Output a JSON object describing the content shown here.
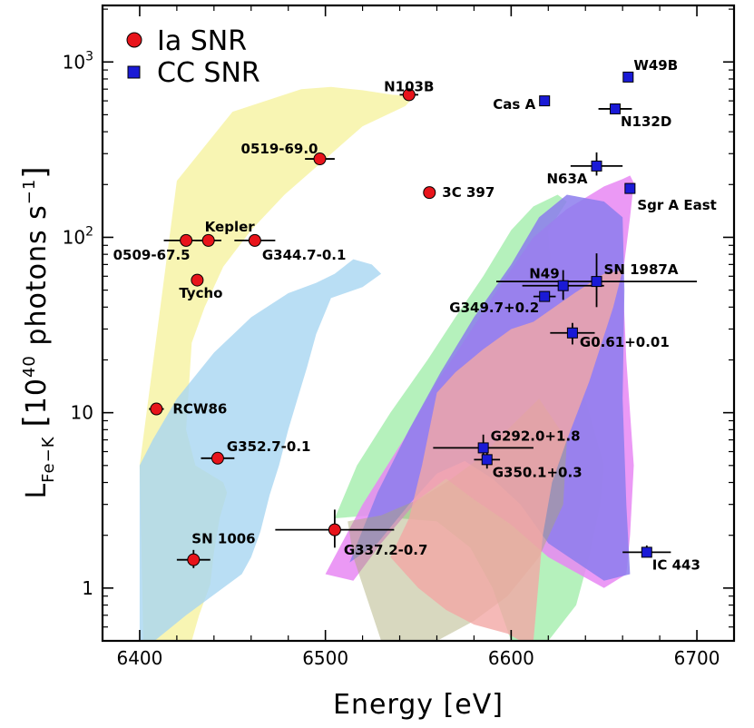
{
  "chart_data": {
    "type": "scatter",
    "xlabel": "Energy [eV]",
    "ylabel_main": "L",
    "ylabel_sub": "Fe−K",
    "ylabel_bracket_open": "[",
    "ylabel_unit_base": "10",
    "ylabel_unit_exp": "40",
    "ylabel_unit_rest": " photons s",
    "ylabel_unit_exp2": "−1",
    "ylabel_bracket_close": "]",
    "xlim": [
      6380,
      6720
    ],
    "ylim": [
      0.5,
      2100
    ],
    "yscale": "log",
    "xticks": [
      {
        "value": 6400,
        "label": "6400"
      },
      {
        "value": 6500,
        "label": "6500"
      },
      {
        "value": 6600,
        "label": "6600"
      },
      {
        "value": 6700,
        "label": "6700"
      }
    ],
    "yticks": [
      {
        "value": 1,
        "label": "1",
        "exp": ""
      },
      {
        "value": 10,
        "label": "10",
        "exp": ""
      },
      {
        "value": 100,
        "label": "10",
        "exp": "2"
      },
      {
        "value": 1000,
        "label": "10",
        "exp": "3"
      }
    ],
    "legend": {
      "position": "top-left",
      "entries": [
        {
          "name": "Ia SNR",
          "marker": "circle",
          "color": "#e8141b"
        },
        {
          "name": "CC SNR",
          "marker": "square",
          "color": "#1a1ad6"
        }
      ]
    },
    "regions": [
      {
        "name": "yellow-band",
        "color": "#f6f299",
        "opacity": 0.75,
        "points": [
          [
            6420,
            210
          ],
          [
            6450,
            520
          ],
          [
            6487,
            700
          ],
          [
            6503,
            720
          ],
          [
            6520,
            690
          ],
          [
            6536,
            650
          ],
          [
            6548,
            640
          ],
          [
            6543,
            560
          ],
          [
            6520,
            430
          ],
          [
            6500,
            280
          ],
          [
            6478,
            175
          ],
          [
            6460,
            110
          ],
          [
            6445,
            68
          ],
          [
            6435,
            40
          ],
          [
            6428,
            25
          ],
          [
            6425,
            8
          ],
          [
            6430,
            5
          ],
          [
            6445,
            4
          ],
          [
            6447,
            3.5
          ],
          [
            6443,
            2.5
          ],
          [
            6440,
            1.6
          ],
          [
            6438,
            1.05
          ],
          [
            6432,
            0.7
          ],
          [
            6428,
            0.5
          ],
          [
            6402,
            0.5
          ],
          [
            6400,
            5
          ]
        ]
      },
      {
        "name": "blue-band",
        "color": "#a7d6f1",
        "opacity": 0.8,
        "points": [
          [
            6400,
            5
          ],
          [
            6407,
            7
          ],
          [
            6420,
            12
          ],
          [
            6440,
            22
          ],
          [
            6460,
            35
          ],
          [
            6480,
            48
          ],
          [
            6495,
            55
          ],
          [
            6505,
            62
          ],
          [
            6515,
            75
          ],
          [
            6525,
            70
          ],
          [
            6530,
            62
          ],
          [
            6520,
            52
          ],
          [
            6503,
            45
          ],
          [
            6495,
            28
          ],
          [
            6490,
            18
          ],
          [
            6485,
            12
          ],
          [
            6480,
            8
          ],
          [
            6475,
            5
          ],
          [
            6470,
            3.4
          ],
          [
            6465,
            2.1
          ],
          [
            6460,
            1.5
          ],
          [
            6455,
            1.2
          ],
          [
            6442,
            0.95
          ],
          [
            6425,
            0.7
          ],
          [
            6408,
            0.5
          ],
          [
            6400,
            0.5
          ]
        ]
      },
      {
        "name": "green-band",
        "color": "#a8eeb0",
        "opacity": 0.85,
        "points": [
          [
            6505,
            2.5
          ],
          [
            6517,
            5
          ],
          [
            6535,
            10
          ],
          [
            6555,
            20
          ],
          [
            6570,
            35
          ],
          [
            6585,
            60
          ],
          [
            6600,
            110
          ],
          [
            6612,
            150
          ],
          [
            6625,
            175
          ],
          [
            6630,
            160
          ],
          [
            6620,
            110
          ],
          [
            6623,
            40
          ],
          [
            6640,
            12
          ],
          [
            6650,
            5
          ],
          [
            6648,
            3
          ],
          [
            6642,
            1.5
          ],
          [
            6635,
            0.8
          ],
          [
            6620,
            0.5
          ],
          [
            6600,
            0.5
          ],
          [
            6590,
            1.0
          ],
          [
            6578,
            1.7
          ],
          [
            6560,
            2.4
          ],
          [
            6540,
            2.5
          ],
          [
            6525,
            2.6
          ]
        ]
      },
      {
        "name": "magenta-band",
        "color": "#e787f3",
        "opacity": 0.85,
        "points": [
          [
            6500,
            1.2
          ],
          [
            6520,
            3.0
          ],
          [
            6542,
            7
          ],
          [
            6560,
            15
          ],
          [
            6577,
            28
          ],
          [
            6595,
            55
          ],
          [
            6612,
            100
          ],
          [
            6630,
            145
          ],
          [
            6650,
            195
          ],
          [
            6660,
            215
          ],
          [
            6664,
            225
          ],
          [
            6666,
            205
          ],
          [
            6664,
            130
          ],
          [
            6660,
            60
          ],
          [
            6662,
            20
          ],
          [
            6666,
            5
          ],
          [
            6664,
            2
          ],
          [
            6662,
            1.2
          ],
          [
            6650,
            1.0
          ],
          [
            6620,
            1.5
          ],
          [
            6600,
            2.3
          ],
          [
            6580,
            3.2
          ],
          [
            6565,
            4.2
          ],
          [
            6550,
            3.2
          ],
          [
            6530,
            1.8
          ],
          [
            6515,
            1.1
          ]
        ]
      },
      {
        "name": "purple-band",
        "color": "#8c7ded",
        "opacity": 0.85,
        "points": [
          [
            6513,
            1.4
          ],
          [
            6528,
            3.5
          ],
          [
            6545,
            8
          ],
          [
            6562,
            17
          ],
          [
            6580,
            35
          ],
          [
            6600,
            70
          ],
          [
            6615,
            130
          ],
          [
            6630,
            175
          ],
          [
            6650,
            160
          ],
          [
            6660,
            130
          ],
          [
            6661,
            50
          ],
          [
            6660,
            12
          ],
          [
            6662,
            3
          ],
          [
            6664,
            1.2
          ],
          [
            6650,
            1.1
          ],
          [
            6620,
            1.8
          ],
          [
            6605,
            3
          ],
          [
            6590,
            4.2
          ],
          [
            6575,
            5.3
          ],
          [
            6560,
            4.5
          ],
          [
            6545,
            3.0
          ],
          [
            6528,
            1.8
          ]
        ]
      },
      {
        "name": "olive-band",
        "color": "#a9a872",
        "opacity": 0.45,
        "points": [
          [
            6512,
            2.4
          ],
          [
            6530,
            2.6
          ],
          [
            6550,
            3.2
          ],
          [
            6568,
            4.2
          ],
          [
            6583,
            5.5
          ],
          [
            6598,
            8
          ],
          [
            6615,
            12
          ],
          [
            6630,
            7
          ],
          [
            6628,
            3
          ],
          [
            6615,
            1.5
          ],
          [
            6598,
            0.9
          ],
          [
            6580,
            0.65
          ],
          [
            6560,
            0.5
          ],
          [
            6530,
            0.5
          ],
          [
            6515,
            1.5
          ]
        ]
      },
      {
        "name": "red-band",
        "color": "#f2a7a5",
        "opacity": 0.8,
        "points": [
          [
            6535,
            1.5
          ],
          [
            6550,
            1.0
          ],
          [
            6565,
            0.75
          ],
          [
            6580,
            0.62
          ],
          [
            6598,
            0.55
          ],
          [
            6605,
            0.5
          ],
          [
            6612,
            0.5
          ],
          [
            6617,
            2.0
          ],
          [
            6622,
            4.0
          ],
          [
            6630,
            7.0
          ],
          [
            6642,
            15
          ],
          [
            6655,
            40
          ],
          [
            6660,
            65
          ],
          [
            6650,
            62
          ],
          [
            6634,
            48
          ],
          [
            6612,
            33
          ],
          [
            6600,
            30
          ],
          [
            6585,
            23
          ],
          [
            6570,
            17
          ],
          [
            6560,
            13
          ],
          [
            6552,
            5
          ],
          [
            6545,
            2.5
          ]
        ]
      }
    ],
    "series": [
      {
        "name": "Ia SNR",
        "marker": "circle",
        "color": "#e8141b",
        "points": [
          {
            "label": "N103B",
            "x": 6545,
            "y": 650,
            "xerr": 5,
            "yerr_lo": 0,
            "yerr_hi": 0,
            "label_dx": 0,
            "label_dy": -4,
            "anchor": "middle",
            "valign": "bottom"
          },
          {
            "label": "0519-69.0",
            "x": 6497,
            "y": 280,
            "xerr": 8,
            "yerr_lo": 0,
            "yerr_hi": 0,
            "label_dx": -2,
            "label_dy": -6,
            "anchor": "end",
            "valign": "bottom"
          },
          {
            "label": "3C 397",
            "x": 6556,
            "y": 180,
            "xerr": 3,
            "yerr_lo": 0,
            "yerr_hi": 0,
            "label_dx": 14,
            "label_dy": 0,
            "anchor": "start",
            "valign": "middle"
          },
          {
            "label": "Kepler",
            "x": 6437,
            "y": 96,
            "xerr": 7,
            "yerr_lo": 0,
            "yerr_hi": 0,
            "label_dx": -4,
            "label_dy": -10,
            "anchor": "start",
            "valign": "bottom"
          },
          {
            "label": "0509-67.5",
            "x": 6425,
            "y": 96,
            "xerr": 12,
            "yerr_lo": 0,
            "yerr_hi": 0,
            "label_dx": -38,
            "label_dy": 10,
            "anchor": "middle",
            "valign": "top"
          },
          {
            "label": "G344.7-0.1",
            "x": 6462,
            "y": 96,
            "xerr": 11,
            "yerr_lo": 0,
            "yerr_hi": 0,
            "label_dx": 8,
            "label_dy": 10,
            "anchor": "start",
            "valign": "top"
          },
          {
            "label": "Tycho",
            "x": 6431,
            "y": 57,
            "xerr": 2,
            "yerr_lo": 0,
            "yerr_hi": 0,
            "label_dx": 4,
            "label_dy": 8,
            "anchor": "middle",
            "valign": "top"
          },
          {
            "label": "RCW86",
            "x": 6409,
            "y": 10.5,
            "xerr": 4,
            "yerr_lo": 0,
            "yerr_hi": 0,
            "label_dx": 18,
            "label_dy": 0,
            "anchor": "start",
            "valign": "middle"
          },
          {
            "label": "G352.7-0.1",
            "x": 6442,
            "y": 5.5,
            "xerr": 9,
            "yerr_lo": 0,
            "yerr_hi": 0,
            "label_dx": 10,
            "label_dy": -8,
            "anchor": "start",
            "valign": "bottom"
          },
          {
            "label": "SN 1006",
            "x": 6429,
            "y": 1.45,
            "xerr": 9,
            "yerr_lo": 0.15,
            "yerr_hi": 0.2,
            "label_dx": -2,
            "label_dy": -18,
            "anchor": "start",
            "valign": "bottom"
          },
          {
            "label": "G337.2-0.7",
            "x": 6505,
            "y": 2.15,
            "xerr": 32,
            "yerr_lo": 0.45,
            "yerr_hi": 0.65,
            "label_dx": 10,
            "label_dy": 16,
            "anchor": "start",
            "valign": "top"
          }
        ]
      },
      {
        "name": "CC SNR",
        "marker": "square",
        "color": "#1a1ad6",
        "points": [
          {
            "label": "W49B",
            "x": 6663,
            "y": 820,
            "xerr": 0,
            "yerr_lo": 0,
            "yerr_hi": 0,
            "label_dx": 6,
            "label_dy": -8,
            "anchor": "start",
            "valign": "bottom"
          },
          {
            "label": "Cas A",
            "x": 6618,
            "y": 600,
            "xerr": 0,
            "yerr_lo": 0,
            "yerr_hi": 0,
            "label_dx": -10,
            "label_dy": 4,
            "anchor": "end",
            "valign": "middle"
          },
          {
            "label": "N132D",
            "x": 6656,
            "y": 540,
            "xerr": 9,
            "yerr_lo": 30,
            "yerr_hi": 40,
            "label_dx": 6,
            "label_dy": 8,
            "anchor": "start",
            "valign": "top"
          },
          {
            "label": "N63A",
            "x": 6646,
            "y": 255,
            "xerr": 14,
            "yerr_lo": 30,
            "yerr_hi": 50,
            "label_dx": -10,
            "label_dy": 8,
            "anchor": "end",
            "valign": "top"
          },
          {
            "label": "Sgr A East",
            "x": 6664,
            "y": 190,
            "xerr": 0,
            "yerr_lo": 0,
            "yerr_hi": 0,
            "label_dx": 8,
            "label_dy": 12,
            "anchor": "start",
            "valign": "top"
          },
          {
            "label": "SN 1987A",
            "x": 6646,
            "y": 56,
            "xerr": 54,
            "yerr_lo": 16,
            "yerr_hi": 25,
            "label_dx": 8,
            "label_dy": -8,
            "anchor": "start",
            "valign": "bottom"
          },
          {
            "label": "N49",
            "x": 6628,
            "y": 53,
            "xerr": 22,
            "yerr_lo": 9,
            "yerr_hi": 12,
            "label_dx": -4,
            "label_dy": -8,
            "anchor": "end",
            "valign": "bottom"
          },
          {
            "label": "G349.7+0.2",
            "x": 6618,
            "y": 46,
            "xerr": 6,
            "yerr_lo": 0,
            "yerr_hi": 0,
            "label_dx": -6,
            "label_dy": 6,
            "anchor": "end",
            "valign": "top"
          },
          {
            "label": "G0.61+0.01",
            "x": 6633,
            "y": 28.5,
            "xerr": 12,
            "yerr_lo": 4,
            "yerr_hi": 4,
            "label_dx": 8,
            "label_dy": 4,
            "anchor": "start",
            "valign": "top"
          },
          {
            "label": "G292.0+1.8",
            "x": 6585,
            "y": 6.3,
            "xerr": 27,
            "yerr_lo": 1.0,
            "yerr_hi": 1.2,
            "label_dx": 8,
            "label_dy": -8,
            "anchor": "start",
            "valign": "bottom"
          },
          {
            "label": "G350.1+0.3",
            "x": 6587,
            "y": 5.4,
            "xerr": 7,
            "yerr_lo": 0.6,
            "yerr_hi": 0.7,
            "label_dx": 6,
            "label_dy": 8,
            "anchor": "start",
            "valign": "top"
          },
          {
            "label": "IC 443",
            "x": 6673,
            "y": 1.6,
            "xerr": 13,
            "yerr_lo": 0.1,
            "yerr_hi": 0.15,
            "label_dx": 6,
            "label_dy": 8,
            "anchor": "start",
            "valign": "top"
          }
        ]
      }
    ]
  }
}
